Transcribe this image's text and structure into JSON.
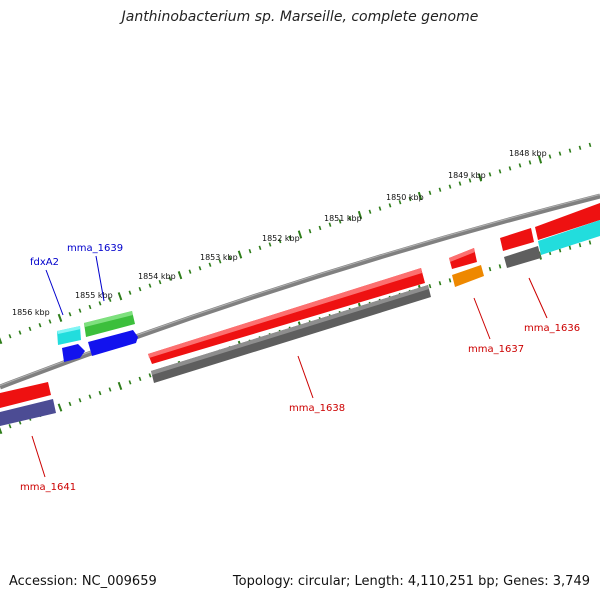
{
  "title": "Janthinobacterium sp. Marseille, complete genome",
  "footer": {
    "accession": "Accession: NC_009659",
    "stats": "Topology: circular; Length: 4,110,251 bp; Genes: 3,749"
  },
  "colors": {
    "backbone": "#808080",
    "tick": "#2e7d1a",
    "red": "#ee1111",
    "grey": "#5e5e5e",
    "cyan": "#22dddd",
    "green": "#3cbf3c",
    "blue": "#1212ee",
    "orange": "#ee8800",
    "purple": "#4c4c94",
    "label_red": "#cc0000",
    "label_blue": "#0000cc"
  },
  "kbp_labels": [
    "1856 kbp",
    "1855 kbp",
    "1854 kbp",
    "1853 kbp",
    "1852 kbp",
    "1851 kbp",
    "1850 kbp",
    "1849 kbp",
    "1848 kbp"
  ],
  "gene_labels": {
    "fdxA2": "fdxA2",
    "mma_1639": "mma_1639",
    "mma_1636": "mma_1636",
    "mma_1637": "mma_1637",
    "mma_1638": "mma_1638",
    "mma_1641": "mma_1641"
  }
}
